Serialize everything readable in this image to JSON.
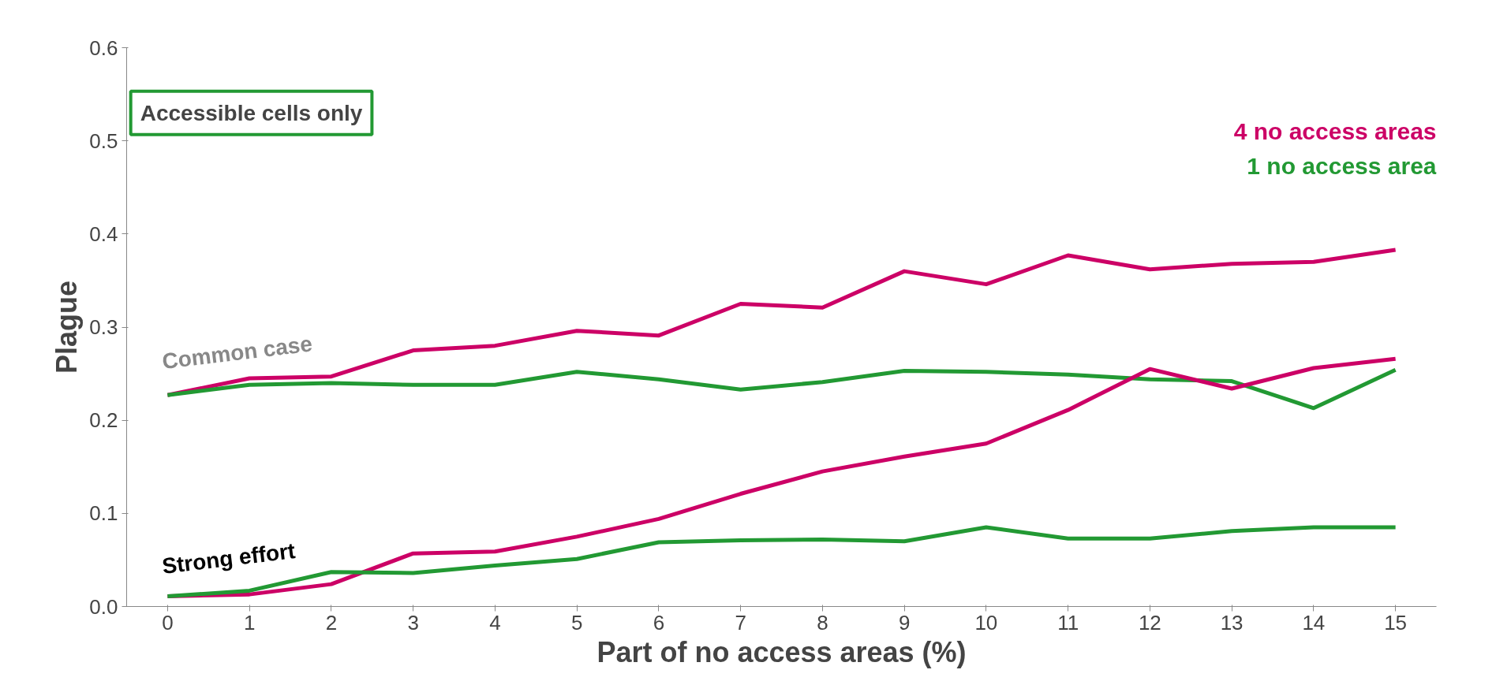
{
  "chart_data": {
    "type": "line",
    "xlabel": "Part of no access areas (%)",
    "ylabel": "Plague",
    "x": [
      0,
      1,
      2,
      3,
      4,
      5,
      6,
      7,
      8,
      9,
      10,
      11,
      12,
      13,
      14,
      15
    ],
    "xlim": [
      -0.5,
      15.5
    ],
    "xticks": [
      0,
      1,
      2,
      3,
      4,
      5,
      6,
      7,
      8,
      9,
      10,
      11,
      12,
      13,
      14,
      15
    ],
    "ylim": [
      0,
      0.6
    ],
    "yticks": [
      {
        "value": 0,
        "label": "0.0"
      },
      {
        "value": 0.1,
        "label": "0.1"
      },
      {
        "value": 0.2,
        "label": "0.2"
      },
      {
        "value": 0.3,
        "label": "0.3"
      },
      {
        "value": 0.4,
        "label": "0.4"
      },
      {
        "value": 0.5,
        "label": "0.5"
      },
      {
        "value": 0.6,
        "label": "0.6"
      }
    ],
    "series": [
      {
        "name": "4 no access areas",
        "color": "#cc0066",
        "values": [
          0.227,
          0.245,
          0.247,
          0.275,
          0.28,
          0.296,
          0.291,
          0.325,
          0.321,
          0.36,
          0.346,
          0.377,
          0.362,
          0.368,
          0.37,
          0.383
        ]
      },
      {
        "name": "1 no access area",
        "color": "#229933",
        "values": [
          0.227,
          0.238,
          0.24,
          0.238,
          0.238,
          0.252,
          0.244,
          0.233,
          0.241,
          0.253,
          0.252,
          0.249,
          0.244,
          0.242,
          0.213,
          0.254
        ]
      },
      {
        "color": "#cc0066",
        "values": [
          0.011,
          0.013,
          0.024,
          0.057,
          0.059,
          0.075,
          0.094,
          0.121,
          0.145,
          0.161,
          0.175,
          0.211,
          0.255,
          0.234,
          0.256,
          0.266
        ]
      },
      {
        "color": "#229933",
        "values": [
          0.011,
          0.017,
          0.037,
          0.036,
          0.044,
          0.051,
          0.069,
          0.071,
          0.072,
          0.07,
          0.085,
          0.073,
          0.073,
          0.081,
          0.085,
          0.085
        ]
      }
    ],
    "annotations": [
      "Common case",
      "Strong effort",
      "Accessible cells only"
    ],
    "legend": "top right",
    "grid": false,
    "marker": "none",
    "line_style": "solid"
  }
}
